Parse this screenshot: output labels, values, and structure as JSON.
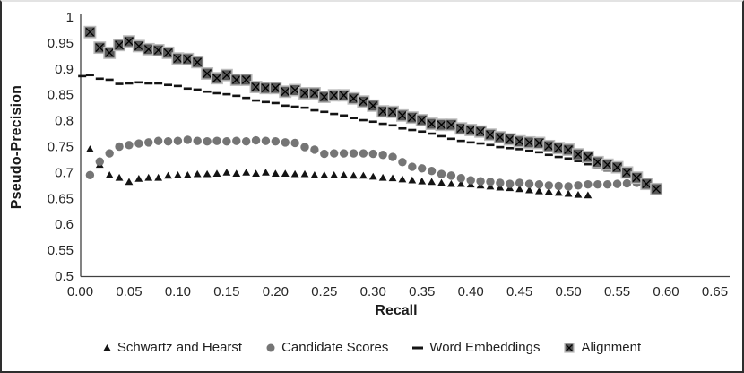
{
  "frame": {
    "background": "#ffffff",
    "border_color": "#2e2e2e"
  },
  "colors": {
    "axis_line": "#404040",
    "tick_text": "#262626",
    "black_marker": "#141414",
    "gray_marker": "#757575",
    "square_fill": "#595959",
    "square_border": "#bdbdbd",
    "square_x": "#000000"
  },
  "chart_data": {
    "type": "scatter",
    "title": "",
    "xlabel": "Recall",
    "ylabel": "Pseudo-Precision",
    "xlim": [
      0,
      0.65
    ],
    "ylim": [
      0.5,
      1.0
    ],
    "grid": false,
    "legend_position": "bottom",
    "x_ticks": [
      "0.00",
      "0.05",
      "0.10",
      "0.15",
      "0.20",
      "0.25",
      "0.30",
      "0.35",
      "0.40",
      "0.45",
      "0.50",
      "0.55",
      "0.60",
      "0.65"
    ],
    "y_ticks": [
      "1",
      "0.95",
      "0.9",
      "0.85",
      "0.8",
      "0.75",
      "0.7",
      "0.65",
      "0.6",
      "0.55",
      "0.5"
    ],
    "series": [
      {
        "name": "Schwartz and Hearst",
        "marker": "triangle",
        "color": "#141414",
        "points": [
          [
            0.01,
            0.745
          ],
          [
            0.02,
            0.715
          ],
          [
            0.03,
            0.695
          ],
          [
            0.04,
            0.69
          ],
          [
            0.05,
            0.682
          ],
          [
            0.06,
            0.688
          ],
          [
            0.07,
            0.69
          ],
          [
            0.08,
            0.69
          ],
          [
            0.09,
            0.694
          ],
          [
            0.1,
            0.695
          ],
          [
            0.11,
            0.695
          ],
          [
            0.12,
            0.697
          ],
          [
            0.13,
            0.697
          ],
          [
            0.14,
            0.698
          ],
          [
            0.15,
            0.7
          ],
          [
            0.16,
            0.698
          ],
          [
            0.17,
            0.7
          ],
          [
            0.18,
            0.698
          ],
          [
            0.19,
            0.7
          ],
          [
            0.2,
            0.698
          ],
          [
            0.21,
            0.698
          ],
          [
            0.22,
            0.697
          ],
          [
            0.23,
            0.697
          ],
          [
            0.24,
            0.695
          ],
          [
            0.25,
            0.695
          ],
          [
            0.26,
            0.695
          ],
          [
            0.27,
            0.695
          ],
          [
            0.28,
            0.694
          ],
          [
            0.29,
            0.694
          ],
          [
            0.3,
            0.692
          ],
          [
            0.31,
            0.69
          ],
          [
            0.32,
            0.689
          ],
          [
            0.33,
            0.687
          ],
          [
            0.34,
            0.685
          ],
          [
            0.35,
            0.683
          ],
          [
            0.36,
            0.682
          ],
          [
            0.37,
            0.68
          ],
          [
            0.38,
            0.678
          ],
          [
            0.39,
            0.678
          ],
          [
            0.4,
            0.677
          ],
          [
            0.41,
            0.675
          ],
          [
            0.42,
            0.673
          ],
          [
            0.43,
            0.671
          ],
          [
            0.44,
            0.67
          ],
          [
            0.45,
            0.668
          ],
          [
            0.46,
            0.666
          ],
          [
            0.47,
            0.664
          ],
          [
            0.48,
            0.663
          ],
          [
            0.49,
            0.661
          ],
          [
            0.5,
            0.659
          ],
          [
            0.51,
            0.657
          ],
          [
            0.52,
            0.656
          ]
        ]
      },
      {
        "name": "Candidate Scores",
        "marker": "circle",
        "color": "#757575",
        "points": [
          [
            0.01,
            0.695
          ],
          [
            0.02,
            0.721
          ],
          [
            0.03,
            0.737
          ],
          [
            0.04,
            0.75
          ],
          [
            0.05,
            0.753
          ],
          [
            0.06,
            0.756
          ],
          [
            0.07,
            0.758
          ],
          [
            0.08,
            0.761
          ],
          [
            0.09,
            0.76
          ],
          [
            0.1,
            0.761
          ],
          [
            0.11,
            0.763
          ],
          [
            0.12,
            0.761
          ],
          [
            0.13,
            0.76
          ],
          [
            0.14,
            0.761
          ],
          [
            0.15,
            0.76
          ],
          [
            0.16,
            0.761
          ],
          [
            0.17,
            0.76
          ],
          [
            0.18,
            0.762
          ],
          [
            0.19,
            0.761
          ],
          [
            0.2,
            0.76
          ],
          [
            0.21,
            0.758
          ],
          [
            0.22,
            0.757
          ],
          [
            0.23,
            0.749
          ],
          [
            0.24,
            0.744
          ],
          [
            0.25,
            0.736
          ],
          [
            0.26,
            0.737
          ],
          [
            0.27,
            0.737
          ],
          [
            0.28,
            0.737
          ],
          [
            0.29,
            0.737
          ],
          [
            0.3,
            0.736
          ],
          [
            0.31,
            0.734
          ],
          [
            0.32,
            0.73
          ],
          [
            0.33,
            0.72
          ],
          [
            0.34,
            0.711
          ],
          [
            0.35,
            0.708
          ],
          [
            0.36,
            0.703
          ],
          [
            0.37,
            0.697
          ],
          [
            0.38,
            0.694
          ],
          [
            0.39,
            0.689
          ],
          [
            0.4,
            0.685
          ],
          [
            0.41,
            0.683
          ],
          [
            0.42,
            0.682
          ],
          [
            0.43,
            0.68
          ],
          [
            0.44,
            0.678
          ],
          [
            0.45,
            0.68
          ],
          [
            0.46,
            0.678
          ],
          [
            0.47,
            0.677
          ],
          [
            0.48,
            0.675
          ],
          [
            0.49,
            0.674
          ],
          [
            0.5,
            0.673
          ],
          [
            0.51,
            0.675
          ],
          [
            0.52,
            0.677
          ],
          [
            0.53,
            0.677
          ],
          [
            0.54,
            0.677
          ],
          [
            0.55,
            0.678
          ],
          [
            0.56,
            0.679
          ],
          [
            0.57,
            0.68
          ]
        ]
      },
      {
        "name": "Word Embeddings",
        "marker": "dash",
        "color": "#141414",
        "points": [
          [
            0.002,
            0.886
          ],
          [
            0.01,
            0.888
          ],
          [
            0.02,
            0.881
          ],
          [
            0.03,
            0.879
          ],
          [
            0.04,
            0.871
          ],
          [
            0.05,
            0.872
          ],
          [
            0.06,
            0.874
          ],
          [
            0.07,
            0.872
          ],
          [
            0.08,
            0.872
          ],
          [
            0.09,
            0.869
          ],
          [
            0.1,
            0.867
          ],
          [
            0.11,
            0.862
          ],
          [
            0.12,
            0.86
          ],
          [
            0.13,
            0.856
          ],
          [
            0.14,
            0.853
          ],
          [
            0.15,
            0.851
          ],
          [
            0.16,
            0.848
          ],
          [
            0.17,
            0.844
          ],
          [
            0.18,
            0.839
          ],
          [
            0.19,
            0.836
          ],
          [
            0.2,
            0.834
          ],
          [
            0.21,
            0.829
          ],
          [
            0.22,
            0.827
          ],
          [
            0.23,
            0.825
          ],
          [
            0.24,
            0.82
          ],
          [
            0.25,
            0.817
          ],
          [
            0.26,
            0.813
          ],
          [
            0.27,
            0.81
          ],
          [
            0.28,
            0.805
          ],
          [
            0.29,
            0.801
          ],
          [
            0.3,
            0.798
          ],
          [
            0.31,
            0.794
          ],
          [
            0.32,
            0.791
          ],
          [
            0.33,
            0.785
          ],
          [
            0.34,
            0.782
          ],
          [
            0.35,
            0.779
          ],
          [
            0.36,
            0.775
          ],
          [
            0.37,
            0.77
          ],
          [
            0.38,
            0.765
          ],
          [
            0.39,
            0.761
          ],
          [
            0.4,
            0.758
          ],
          [
            0.41,
            0.756
          ],
          [
            0.42,
            0.753
          ],
          [
            0.43,
            0.749
          ],
          [
            0.44,
            0.747
          ],
          [
            0.45,
            0.745
          ],
          [
            0.46,
            0.742
          ],
          [
            0.47,
            0.739
          ],
          [
            0.48,
            0.734
          ],
          [
            0.49,
            0.73
          ],
          [
            0.5,
            0.727
          ],
          [
            0.51,
            0.722
          ],
          [
            0.52,
            0.716
          ],
          [
            0.53,
            0.709
          ],
          [
            0.54,
            0.704
          ],
          [
            0.55,
            0.701
          ],
          [
            0.56,
            0.7
          ]
        ]
      },
      {
        "name": "Alignment",
        "marker": "x-square",
        "color": "#595959",
        "border": "#bdbdbd",
        "x_color": "#000000",
        "points": [
          [
            0.01,
            0.971
          ],
          [
            0.02,
            0.941
          ],
          [
            0.03,
            0.931
          ],
          [
            0.04,
            0.946
          ],
          [
            0.05,
            0.953
          ],
          [
            0.06,
            0.944
          ],
          [
            0.07,
            0.938
          ],
          [
            0.08,
            0.936
          ],
          [
            0.09,
            0.931
          ],
          [
            0.1,
            0.92
          ],
          [
            0.11,
            0.919
          ],
          [
            0.12,
            0.913
          ],
          [
            0.13,
            0.891
          ],
          [
            0.14,
            0.882
          ],
          [
            0.15,
            0.888
          ],
          [
            0.16,
            0.879
          ],
          [
            0.17,
            0.879
          ],
          [
            0.18,
            0.865
          ],
          [
            0.19,
            0.863
          ],
          [
            0.2,
            0.863
          ],
          [
            0.21,
            0.856
          ],
          [
            0.22,
            0.859
          ],
          [
            0.23,
            0.853
          ],
          [
            0.24,
            0.853
          ],
          [
            0.25,
            0.846
          ],
          [
            0.26,
            0.849
          ],
          [
            0.27,
            0.849
          ],
          [
            0.28,
            0.843
          ],
          [
            0.29,
            0.837
          ],
          [
            0.3,
            0.829
          ],
          [
            0.31,
            0.818
          ],
          [
            0.32,
            0.817
          ],
          [
            0.33,
            0.81
          ],
          [
            0.34,
            0.806
          ],
          [
            0.35,
            0.801
          ],
          [
            0.36,
            0.794
          ],
          [
            0.37,
            0.792
          ],
          [
            0.38,
            0.792
          ],
          [
            0.39,
            0.785
          ],
          [
            0.4,
            0.782
          ],
          [
            0.41,
            0.779
          ],
          [
            0.42,
            0.773
          ],
          [
            0.43,
            0.768
          ],
          [
            0.44,
            0.764
          ],
          [
            0.45,
            0.76
          ],
          [
            0.46,
            0.758
          ],
          [
            0.47,
            0.757
          ],
          [
            0.48,
            0.751
          ],
          [
            0.49,
            0.747
          ],
          [
            0.5,
            0.744
          ],
          [
            0.51,
            0.735
          ],
          [
            0.52,
            0.73
          ],
          [
            0.53,
            0.72
          ],
          [
            0.54,
            0.715
          ],
          [
            0.55,
            0.71
          ],
          [
            0.56,
            0.7
          ],
          [
            0.57,
            0.69
          ],
          [
            0.58,
            0.678
          ],
          [
            0.59,
            0.668
          ]
        ]
      }
    ]
  }
}
